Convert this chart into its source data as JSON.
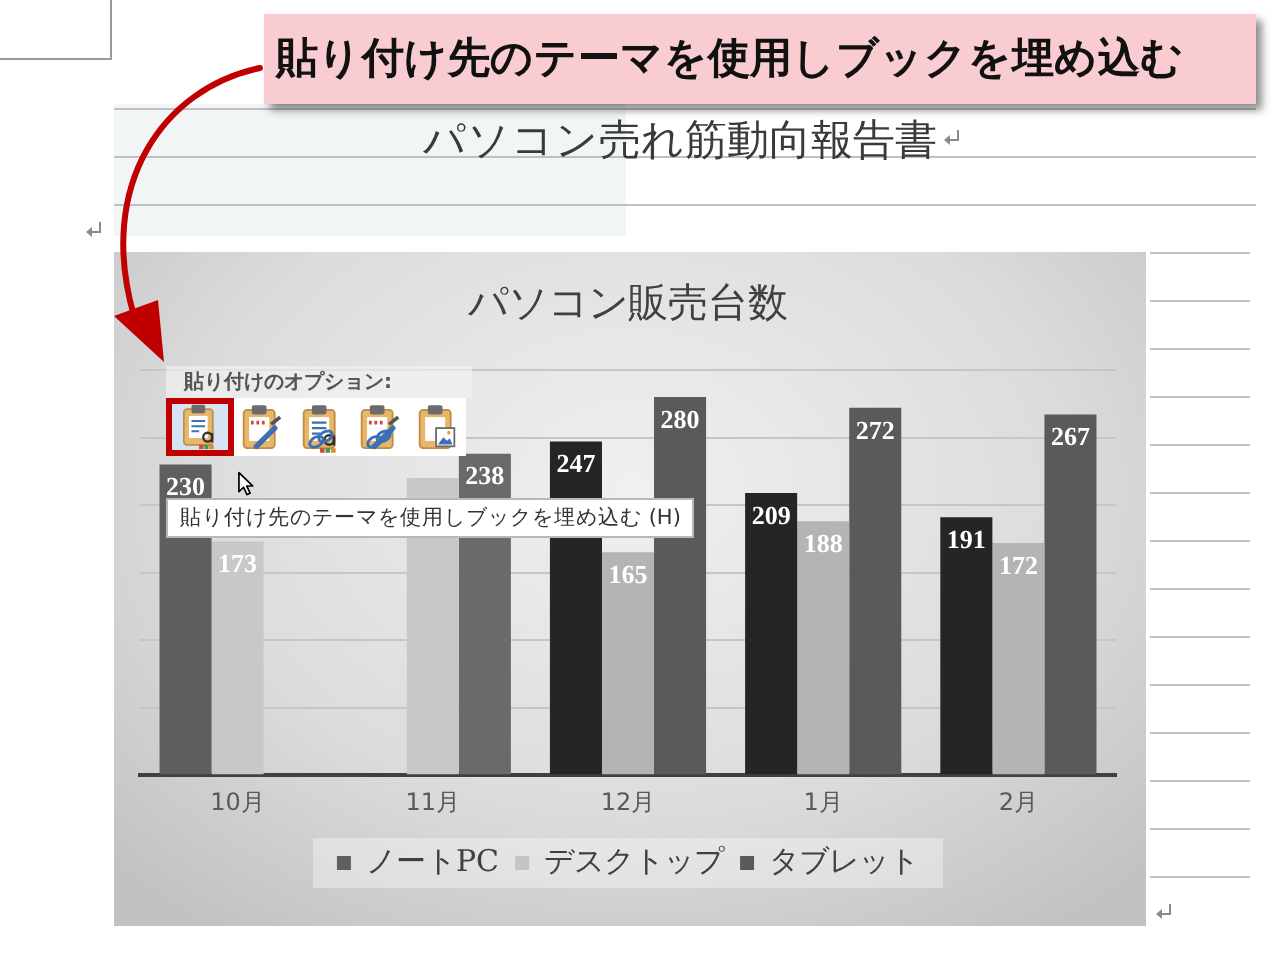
{
  "chart_data": {
    "type": "bar",
    "title": "パソコン販売台数",
    "categories": [
      "10月",
      "11月",
      "12月",
      "1月",
      "2月"
    ],
    "series": [
      {
        "name": "ノートPC",
        "color": "#5f5f5f",
        "colors": [
          "#5f5f5f",
          "#5f5f5f",
          "#252525",
          "#252525",
          "#252525"
        ],
        "values": [
          230,
          null,
          247,
          209,
          191
        ],
        "value_labels": [
          "230",
          null,
          "247",
          "209",
          "191"
        ]
      },
      {
        "name": "デスクトップ",
        "color": "#c4c4c4",
        "colors": [
          "#c8c8c8",
          "#c8c8c8",
          "#b4b4b4",
          "#b4b4b4",
          "#b4b4b4"
        ],
        "values": [
          173,
          220,
          165,
          188,
          172
        ],
        "value_labels": [
          "173",
          null,
          "165",
          "188",
          "172"
        ]
      },
      {
        "name": "タブレット",
        "color": "#5a5a5a",
        "colors": [
          "#7a7a7a",
          "#6a6a6a",
          "#5a5a5a",
          "#5a5a5a",
          "#5a5a5a"
        ],
        "values": [
          null,
          238,
          280,
          272,
          267
        ],
        "value_labels": [
          null,
          "238",
          "280",
          "272",
          "267"
        ]
      }
    ],
    "ylim": [
      0,
      300
    ],
    "yticks": [
      {
        "value": 0,
        "label": null
      },
      {
        "value": 50,
        "label": null
      },
      {
        "value": 100,
        "label": null
      },
      {
        "value": 150,
        "label": null
      },
      {
        "value": 200,
        "label": null
      },
      {
        "value": 250,
        "label": null
      },
      {
        "value": 300,
        "label": null
      }
    ],
    "tick_labels": "x",
    "grid": "y",
    "legend": "bottom",
    "annotations": [
      "パソコン売れ筋動向報告書",
      "貼り付け先のテーマを使用しブックを埋め込む",
      "貼り付けのオプション:",
      "貼り付け先のテーマを使用しブックを埋め込む (H)"
    ]
  }
}
